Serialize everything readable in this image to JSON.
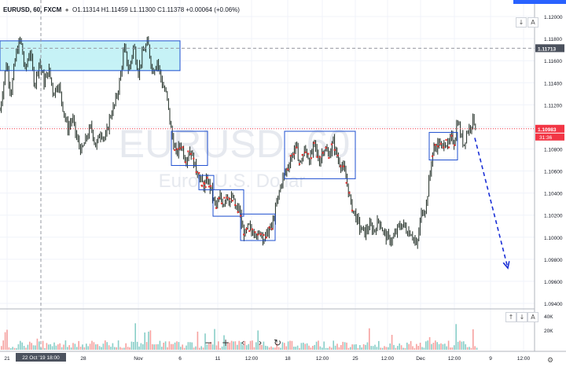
{
  "legend": {
    "symbol_line": "EURUSD, 60, FXCM",
    "ohlc": "O1.11314  H1.11459  L1.11300  C1.11378  +0.00064 (+0.06%)"
  },
  "watermark": {
    "symbol": "EURUSD, 60",
    "description": "Euro / U.S. Dollar"
  },
  "price_axis": {
    "ticks": [
      "1.12000",
      "1.11800",
      "1.11600",
      "1.11400",
      "1.11200",
      "1.11000",
      "1.10800",
      "1.10600",
      "1.10400",
      "1.10200",
      "1.10000",
      "1.09800",
      "1.09600",
      "1.09400"
    ],
    "last_price_label": "1.10983",
    "countdown_label": "31:36",
    "crosshair_price_label": "1.11713"
  },
  "time_axis": {
    "ticks": [
      "21",
      "28",
      "Nov",
      "6",
      "11",
      "12:00",
      "18",
      "12:00",
      "25",
      "12:00",
      "Dec",
      "12:00",
      "9",
      "12:00"
    ],
    "crosshair_label": "22 Oct '19  18:00"
  },
  "volume_axis": {
    "ticks": [
      "40K",
      "20K"
    ]
  },
  "buttons": {
    "scroll_down": "↓",
    "alert": "A",
    "scale_up": "↑",
    "scale_down": "↓"
  },
  "toolbar": {
    "zoom_out": "−",
    "zoom_in": "+",
    "scroll_left": "‹",
    "scroll_right": "›",
    "reset": "↻"
  },
  "colors": {
    "up": "#26a69a",
    "down": "#ef5350",
    "box_fill": "#bcf0f5",
    "box_stroke": "#1e4fd0",
    "last_price": "#f23645",
    "arrow": "#1a2fd6",
    "marker": "#e53935",
    "candle": "#1d2a22"
  },
  "chart_data": {
    "type": "candlestick",
    "symbol": "EURUSD",
    "timeframe": "60",
    "source": "FXCM",
    "ylim": [
      1.0935,
      1.1215
    ],
    "last_price": 1.10983,
    "ohlc_latest": {
      "open": 1.11314,
      "high": 1.11459,
      "low": 1.113,
      "close": 1.11378,
      "change": 0.00064,
      "change_pct": 0.06
    },
    "price_path": [
      [
        0,
        1.1115
      ],
      [
        8,
        1.1158
      ],
      [
        14,
        1.113
      ],
      [
        20,
        1.1165
      ],
      [
        26,
        1.118
      ],
      [
        32,
        1.115
      ],
      [
        38,
        1.117
      ],
      [
        44,
        1.1138
      ],
      [
        50,
        1.116
      ],
      [
        56,
        1.114
      ],
      [
        62,
        1.1152
      ],
      [
        68,
        1.113
      ],
      [
        74,
        1.114
      ],
      [
        80,
        1.1118
      ],
      [
        86,
        1.1098
      ],
      [
        92,
        1.1108
      ],
      [
        98,
        1.1088
      ],
      [
        104,
        1.1078
      ],
      [
        110,
        1.109
      ],
      [
        116,
        1.11
      ],
      [
        122,
        1.1082
      ],
      [
        128,
        1.1096
      ],
      [
        134,
        1.1088
      ],
      [
        140,
        1.111
      ],
      [
        146,
        1.112
      ],
      [
        152,
        1.114
      ],
      [
        158,
        1.1172
      ],
      [
        164,
        1.115
      ],
      [
        170,
        1.1174
      ],
      [
        176,
        1.115
      ],
      [
        182,
        1.1168
      ],
      [
        188,
        1.1176
      ],
      [
        194,
        1.115
      ],
      [
        200,
        1.116
      ],
      [
        206,
        1.114
      ],
      [
        212,
        1.1128
      ],
      [
        218,
        1.1095
      ],
      [
        224,
        1.1075
      ],
      [
        230,
        1.1085
      ],
      [
        236,
        1.107
      ],
      [
        242,
        1.108
      ],
      [
        248,
        1.1064
      ],
      [
        252,
        1.1058
      ],
      [
        256,
        1.105
      ],
      [
        260,
        1.1046
      ],
      [
        264,
        1.1052
      ],
      [
        268,
        1.1044
      ],
      [
        272,
        1.1032
      ],
      [
        276,
        1.1028
      ],
      [
        280,
        1.1036
      ],
      [
        284,
        1.103
      ],
      [
        288,
        1.104
      ],
      [
        292,
        1.1032
      ],
      [
        296,
        1.1036
      ],
      [
        300,
        1.1024
      ],
      [
        304,
        1.1026
      ],
      [
        308,
        1.1008
      ],
      [
        312,
        1.1002
      ],
      [
        316,
        1.101
      ],
      [
        320,
        1.1004
      ],
      [
        324,
        1.1008
      ],
      [
        328,
        1.1
      ],
      [
        332,
        1.1006
      ],
      [
        336,
        1.0998
      ],
      [
        340,
        1.1004
      ],
      [
        346,
        1.101
      ],
      [
        352,
        1.103
      ],
      [
        358,
        1.105
      ],
      [
        364,
        1.106
      ],
      [
        370,
        1.1072
      ],
      [
        376,
        1.1082
      ],
      [
        382,
        1.1066
      ],
      [
        388,
        1.108
      ],
      [
        394,
        1.107
      ],
      [
        400,
        1.1084
      ],
      [
        406,
        1.1068
      ],
      [
        412,
        1.1082
      ],
      [
        418,
        1.1074
      ],
      [
        424,
        1.1086
      ],
      [
        430,
        1.107
      ],
      [
        436,
        1.1064
      ],
      [
        442,
        1.1048
      ],
      [
        446,
        1.103
      ],
      [
        452,
        1.102
      ],
      [
        458,
        1.1008
      ],
      [
        464,
        1.1004
      ],
      [
        470,
        1.101
      ],
      [
        476,
        1.1006
      ],
      [
        482,
        1.1016
      ],
      [
        488,
        1.1004
      ],
      [
        494,
        1.0998
      ],
      [
        500,
        1.0998
      ],
      [
        506,
        1.1008
      ],
      [
        512,
        1.1012
      ],
      [
        518,
        1.1006
      ],
      [
        524,
        1.1004
      ],
      [
        530,
        1.099
      ],
      [
        536,
        1.1022
      ],
      [
        542,
        1.1028
      ],
      [
        546,
        1.1052
      ],
      [
        550,
        1.1076
      ],
      [
        554,
        1.1082
      ],
      [
        558,
        1.1086
      ],
      [
        562,
        1.108
      ],
      [
        566,
        1.1088
      ],
      [
        570,
        1.1082
      ],
      [
        574,
        1.109
      ],
      [
        578,
        1.1086
      ],
      [
        582,
        1.1108
      ],
      [
        586,
        1.1092
      ],
      [
        590,
        1.1084
      ],
      [
        594,
        1.1096
      ],
      [
        598,
        1.11
      ],
      [
        602,
        1.1108
      ],
      [
        606,
        1.1098
      ]
    ],
    "boxes": [
      {
        "x": [
          0,
          229
        ],
        "y": [
          1.1151,
          1.1178
        ],
        "fill": true,
        "markers": false
      },
      {
        "x": [
          218,
          264
        ],
        "y": [
          1.1065,
          1.1096
        ],
        "fill": false,
        "markers": true
      },
      {
        "x": [
          253,
          272
        ],
        "y": [
          1.1043,
          1.1056
        ],
        "fill": false,
        "markers": true
      },
      {
        "x": [
          271,
          310
        ],
        "y": [
          1.1019,
          1.1043
        ],
        "fill": false,
        "markers": true
      },
      {
        "x": [
          306,
          350
        ],
        "y": [
          1.0997,
          1.1021
        ],
        "fill": false,
        "markers": true
      },
      {
        "x": [
          362,
          452
        ],
        "y": [
          1.1053,
          1.1096
        ],
        "fill": false,
        "markers": true
      },
      {
        "x": [
          546,
          582
        ],
        "y": [
          1.107,
          1.1095
        ],
        "fill": false,
        "markers": true
      }
    ],
    "forecast_arrow": {
      "from": [
        604,
        1.109
      ],
      "to": [
        646,
        1.0972
      ]
    },
    "crosshair": {
      "x": 52,
      "price": 1.11713,
      "time": "22 Oct '19  18:00"
    },
    "volume_ylim": [
      0,
      50000
    ]
  }
}
